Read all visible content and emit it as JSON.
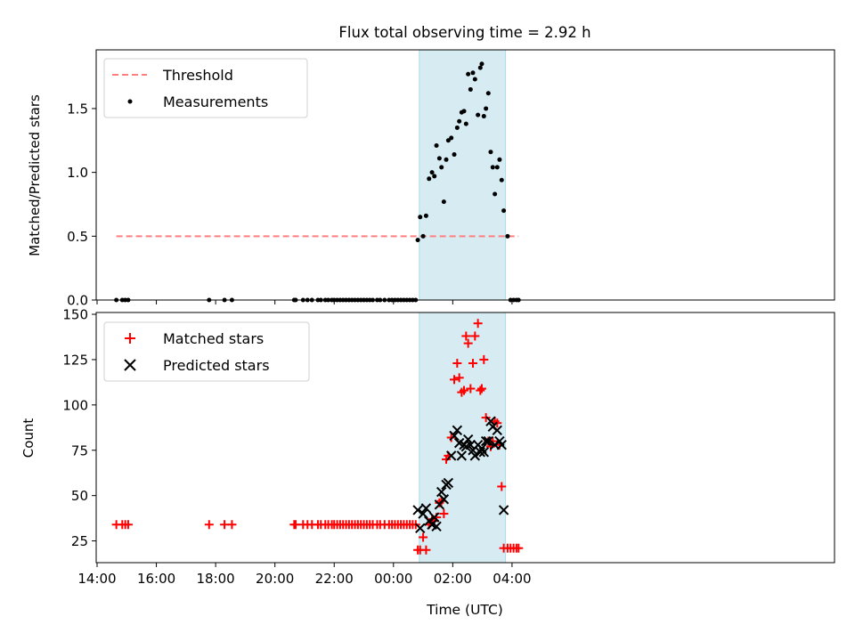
{
  "chart_data": [
    {
      "type": "scatter",
      "title": "Flux total observing time = 2.92 h",
      "xlabel": "",
      "ylabel": "Matched/Predicted stars",
      "x_units": "hours since 14:00 UTC on the plotted night",
      "xlim": [
        13.97,
        38.88
      ],
      "ylim": [
        0,
        1.96
      ],
      "x_ticks": [
        14,
        16,
        18,
        20,
        22,
        24,
        26,
        28
      ],
      "x_tick_labels": [
        "14:00",
        "16:00",
        "18:00",
        "20:00",
        "22:00",
        "00:00",
        "02:00",
        "04:00"
      ],
      "y_ticks": [
        0.0,
        0.5,
        1.0,
        1.5
      ],
      "y_tick_labels": [
        "0.0",
        "0.5",
        "1.0",
        "1.5"
      ],
      "legend": [
        "Threshold",
        "Measurements"
      ],
      "legend_position": "upper-left",
      "shaded_interval": [
        24.87,
        27.78
      ],
      "threshold": {
        "name": "Threshold",
        "y": 0.5,
        "x_range": [
          14.65,
          28.22
        ],
        "color": "#ff7f7f"
      },
      "series": [
        {
          "name": "Measurements",
          "color": "#000000",
          "x": [
            14.65,
            14.85,
            14.95,
            15.05,
            17.78,
            18.3,
            18.55,
            20.65,
            20.7,
            20.95,
            21.1,
            21.25,
            21.45,
            21.55,
            21.7,
            21.8,
            21.92,
            22.0,
            22.1,
            22.2,
            22.3,
            22.4,
            22.5,
            22.6,
            22.7,
            22.8,
            22.9,
            23.0,
            23.1,
            23.2,
            23.3,
            23.45,
            23.55,
            23.7,
            23.85,
            23.95,
            24.05,
            24.15,
            24.25,
            24.35,
            24.45,
            24.55,
            24.65,
            24.75,
            24.82,
            24.9,
            25.0,
            25.1,
            25.2,
            25.3,
            25.38,
            25.45,
            25.55,
            25.62,
            25.7,
            25.78,
            25.85,
            25.95,
            26.05,
            26.15,
            26.22,
            26.3,
            26.38,
            26.45,
            26.52,
            26.6,
            26.68,
            26.75,
            26.85,
            26.93,
            26.98,
            27.05,
            27.12,
            27.2,
            27.28,
            27.35,
            27.42,
            27.5,
            27.58,
            27.65,
            27.72,
            27.85,
            27.95,
            28.05,
            28.15,
            28.22
          ],
          "y": [
            0,
            0,
            0,
            0,
            0,
            0,
            0,
            0,
            0,
            0,
            0,
            0,
            0,
            0,
            0,
            0,
            0,
            0,
            0,
            0,
            0,
            0,
            0,
            0,
            0,
            0,
            0,
            0,
            0,
            0,
            0,
            0,
            0,
            0,
            0,
            0,
            0,
            0,
            0,
            0,
            0,
            0,
            0,
            0,
            0.47,
            0.65,
            0.5,
            0.66,
            0.95,
            1.0,
            0.97,
            1.21,
            1.11,
            1.04,
            0.77,
            1.1,
            1.25,
            1.27,
            1.14,
            1.35,
            1.4,
            1.47,
            1.48,
            1.38,
            1.77,
            1.65,
            1.78,
            1.73,
            1.45,
            1.82,
            1.85,
            1.44,
            1.5,
            1.62,
            1.16,
            1.04,
            0.83,
            1.04,
            1.1,
            0.94,
            0.7,
            0.5,
            0,
            0,
            0,
            0
          ]
        }
      ]
    },
    {
      "type": "scatter",
      "title": "",
      "xlabel": "Time (UTC)",
      "ylabel": "Count",
      "x_units": "hours since 14:00 UTC on the plotted night",
      "xlim": [
        13.97,
        38.88
      ],
      "ylim": [
        13,
        151
      ],
      "x_ticks": [
        14,
        16,
        18,
        20,
        22,
        24,
        26,
        28
      ],
      "x_tick_labels": [
        "14:00",
        "16:00",
        "18:00",
        "20:00",
        "22:00",
        "00:00",
        "02:00",
        "04:00"
      ],
      "y_ticks": [
        25,
        50,
        75,
        100,
        125,
        150
      ],
      "y_tick_labels": [
        "25",
        "50",
        "75",
        "100",
        "125",
        "150"
      ],
      "legend": [
        "Matched stars",
        "Predicted stars"
      ],
      "legend_position": "upper-left",
      "shaded_interval": [
        24.87,
        27.78
      ],
      "series": [
        {
          "name": "Matched stars",
          "marker": "+",
          "color": "#ff0000",
          "x": [
            14.65,
            14.85,
            14.95,
            15.05,
            17.78,
            18.3,
            18.55,
            20.65,
            20.7,
            20.95,
            21.1,
            21.25,
            21.45,
            21.55,
            21.7,
            21.8,
            21.92,
            22.0,
            22.1,
            22.2,
            22.3,
            22.4,
            22.5,
            22.6,
            22.7,
            22.8,
            22.9,
            23.0,
            23.1,
            23.2,
            23.3,
            23.45,
            23.55,
            23.7,
            23.85,
            23.95,
            24.05,
            24.15,
            24.25,
            24.35,
            24.45,
            24.55,
            24.65,
            24.75,
            24.82,
            24.9,
            25.0,
            25.1,
            25.2,
            25.3,
            25.38,
            25.45,
            25.55,
            25.62,
            25.7,
            25.78,
            25.85,
            25.95,
            26.05,
            26.15,
            26.22,
            26.3,
            26.38,
            26.45,
            26.52,
            26.6,
            26.68,
            26.75,
            26.85,
            26.93,
            26.98,
            27.05,
            27.12,
            27.2,
            27.28,
            27.35,
            27.42,
            27.5,
            27.58,
            27.65,
            27.72,
            27.85,
            27.95,
            28.05,
            28.15,
            28.22
          ],
          "y": [
            34,
            34,
            34,
            34,
            34,
            34,
            34,
            34,
            34,
            34,
            34,
            34,
            34,
            34,
            34,
            34,
            34,
            34,
            34,
            34,
            34,
            34,
            34,
            34,
            34,
            34,
            34,
            34,
            34,
            34,
            34,
            34,
            34,
            34,
            34,
            34,
            34,
            34,
            34,
            34,
            34,
            34,
            34,
            34,
            20,
            20,
            27,
            20,
            34,
            37,
            36,
            38,
            46,
            47,
            40,
            70,
            72,
            82,
            114,
            123,
            115,
            107,
            108,
            138,
            134,
            109,
            123,
            138,
            145,
            108,
            109,
            125,
            93,
            80,
            77,
            80,
            91,
            90,
            78,
            55,
            21,
            21,
            21,
            21,
            21,
            21
          ]
        },
        {
          "name": "Predicted stars",
          "marker": "x",
          "color": "#000000",
          "x": [
            24.82,
            24.9,
            25.0,
            25.1,
            25.2,
            25.3,
            25.38,
            25.45,
            25.55,
            25.62,
            25.7,
            25.78,
            25.85,
            25.95,
            26.05,
            26.15,
            26.22,
            26.3,
            26.38,
            26.45,
            26.52,
            26.6,
            26.68,
            26.75,
            26.85,
            26.93,
            26.98,
            27.05,
            27.12,
            27.2,
            27.28,
            27.35,
            27.42,
            27.5,
            27.58,
            27.65,
            27.72
          ],
          "y": [
            42,
            32,
            40,
            43,
            36,
            34,
            38,
            33,
            45,
            52,
            48,
            56,
            57,
            72,
            83,
            86,
            79,
            72,
            78,
            77,
            81,
            78,
            75,
            72,
            78,
            74,
            76,
            74,
            80,
            80,
            91,
            88,
            78,
            86,
            80,
            78,
            42
          ]
        }
      ]
    }
  ]
}
